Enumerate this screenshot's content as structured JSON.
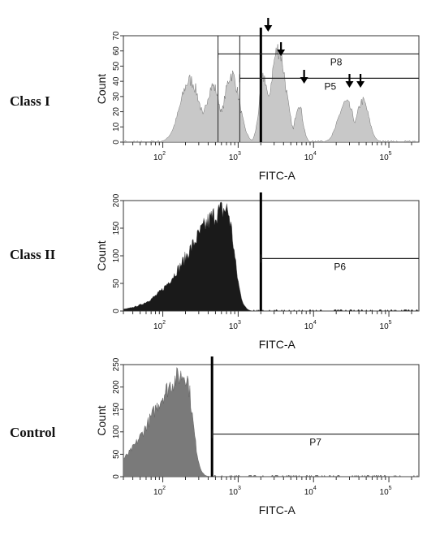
{
  "chart_data": [
    {
      "type": "histogram",
      "row_label": "Class I",
      "xlabel": "FITC-A",
      "ylabel": "Count",
      "x_scale": "log",
      "xlim": [
        30,
        250000
      ],
      "ylim": [
        0,
        70
      ],
      "y_ticks": [
        0,
        10,
        20,
        30,
        40,
        50,
        60,
        70
      ],
      "x_tick_labels": [
        {
          "base": "10",
          "exp": "2",
          "x": 100
        },
        {
          "base": "10",
          "exp": "3",
          "x": 1000
        },
        {
          "base": "10",
          "exp": "4",
          "x": 10000
        },
        {
          "base": "10",
          "exp": "5",
          "x": 100000
        }
      ],
      "fill": "#c8c8c8",
      "peaks": [
        {
          "center": 230,
          "height": 42,
          "width": 0.13
        },
        {
          "center": 460,
          "height": 38,
          "width": 0.1
        },
        {
          "center": 820,
          "height": 46,
          "width": 0.1
        },
        {
          "center": 2200,
          "height": 44,
          "width": 0.06
        },
        {
          "center": 3400,
          "height": 63,
          "width": 0.1
        },
        {
          "center": 6400,
          "height": 26,
          "width": 0.05
        },
        {
          "center": 27000,
          "height": 27,
          "width": 0.1
        },
        {
          "center": 45000,
          "height": 28,
          "width": 0.08
        }
      ],
      "marker_x": 2000,
      "gates": [
        {
          "name": "P8",
          "from": 540,
          "to": 250000,
          "y": 58
        },
        {
          "name": "P5",
          "from": 1050,
          "to": 250000,
          "y": 42
        }
      ],
      "arrows": [
        2500,
        3700,
        7500,
        30000,
        42000
      ]
    },
    {
      "type": "histogram",
      "row_label": "Class II",
      "xlabel": "FITC-A",
      "ylabel": "Count",
      "x_scale": "log",
      "xlim": [
        30,
        250000
      ],
      "ylim": [
        0,
        200
      ],
      "y_ticks": [
        0,
        50,
        100,
        150,
        200
      ],
      "x_tick_labels": [
        {
          "base": "10",
          "exp": "2",
          "x": 100
        },
        {
          "base": "10",
          "exp": "3",
          "x": 1000
        },
        {
          "base": "10",
          "exp": "4",
          "x": 10000
        },
        {
          "base": "10",
          "exp": "5",
          "x": 100000
        }
      ],
      "fill": "#1a1a1a",
      "peaks": [
        {
          "center": 700,
          "height": 190,
          "width": 0.22,
          "skew": "left"
        }
      ],
      "marker_x": 2000,
      "gates": [
        {
          "name": "P6",
          "from": 2000,
          "to": 250000,
          "y": 95
        }
      ]
    },
    {
      "type": "histogram",
      "row_label": "Control",
      "xlabel": "FITC-A",
      "ylabel": "Count",
      "x_scale": "log",
      "xlim": [
        30,
        250000
      ],
      "ylim": [
        0,
        250
      ],
      "y_ticks": [
        0,
        50,
        100,
        150,
        200,
        250
      ],
      "x_tick_labels": [
        {
          "base": "10",
          "exp": "2",
          "x": 100
        },
        {
          "base": "10",
          "exp": "3",
          "x": 1000
        },
        {
          "base": "10",
          "exp": "4",
          "x": 10000
        },
        {
          "base": "10",
          "exp": "5",
          "x": 100000
        }
      ],
      "fill": "#7a7a7a",
      "peaks": [
        {
          "center": 200,
          "height": 235,
          "width": 0.2,
          "skew": "left"
        }
      ],
      "marker_x": 450,
      "gates": [
        {
          "name": "P7",
          "from": 450,
          "to": 250000,
          "y": 95
        }
      ]
    }
  ]
}
